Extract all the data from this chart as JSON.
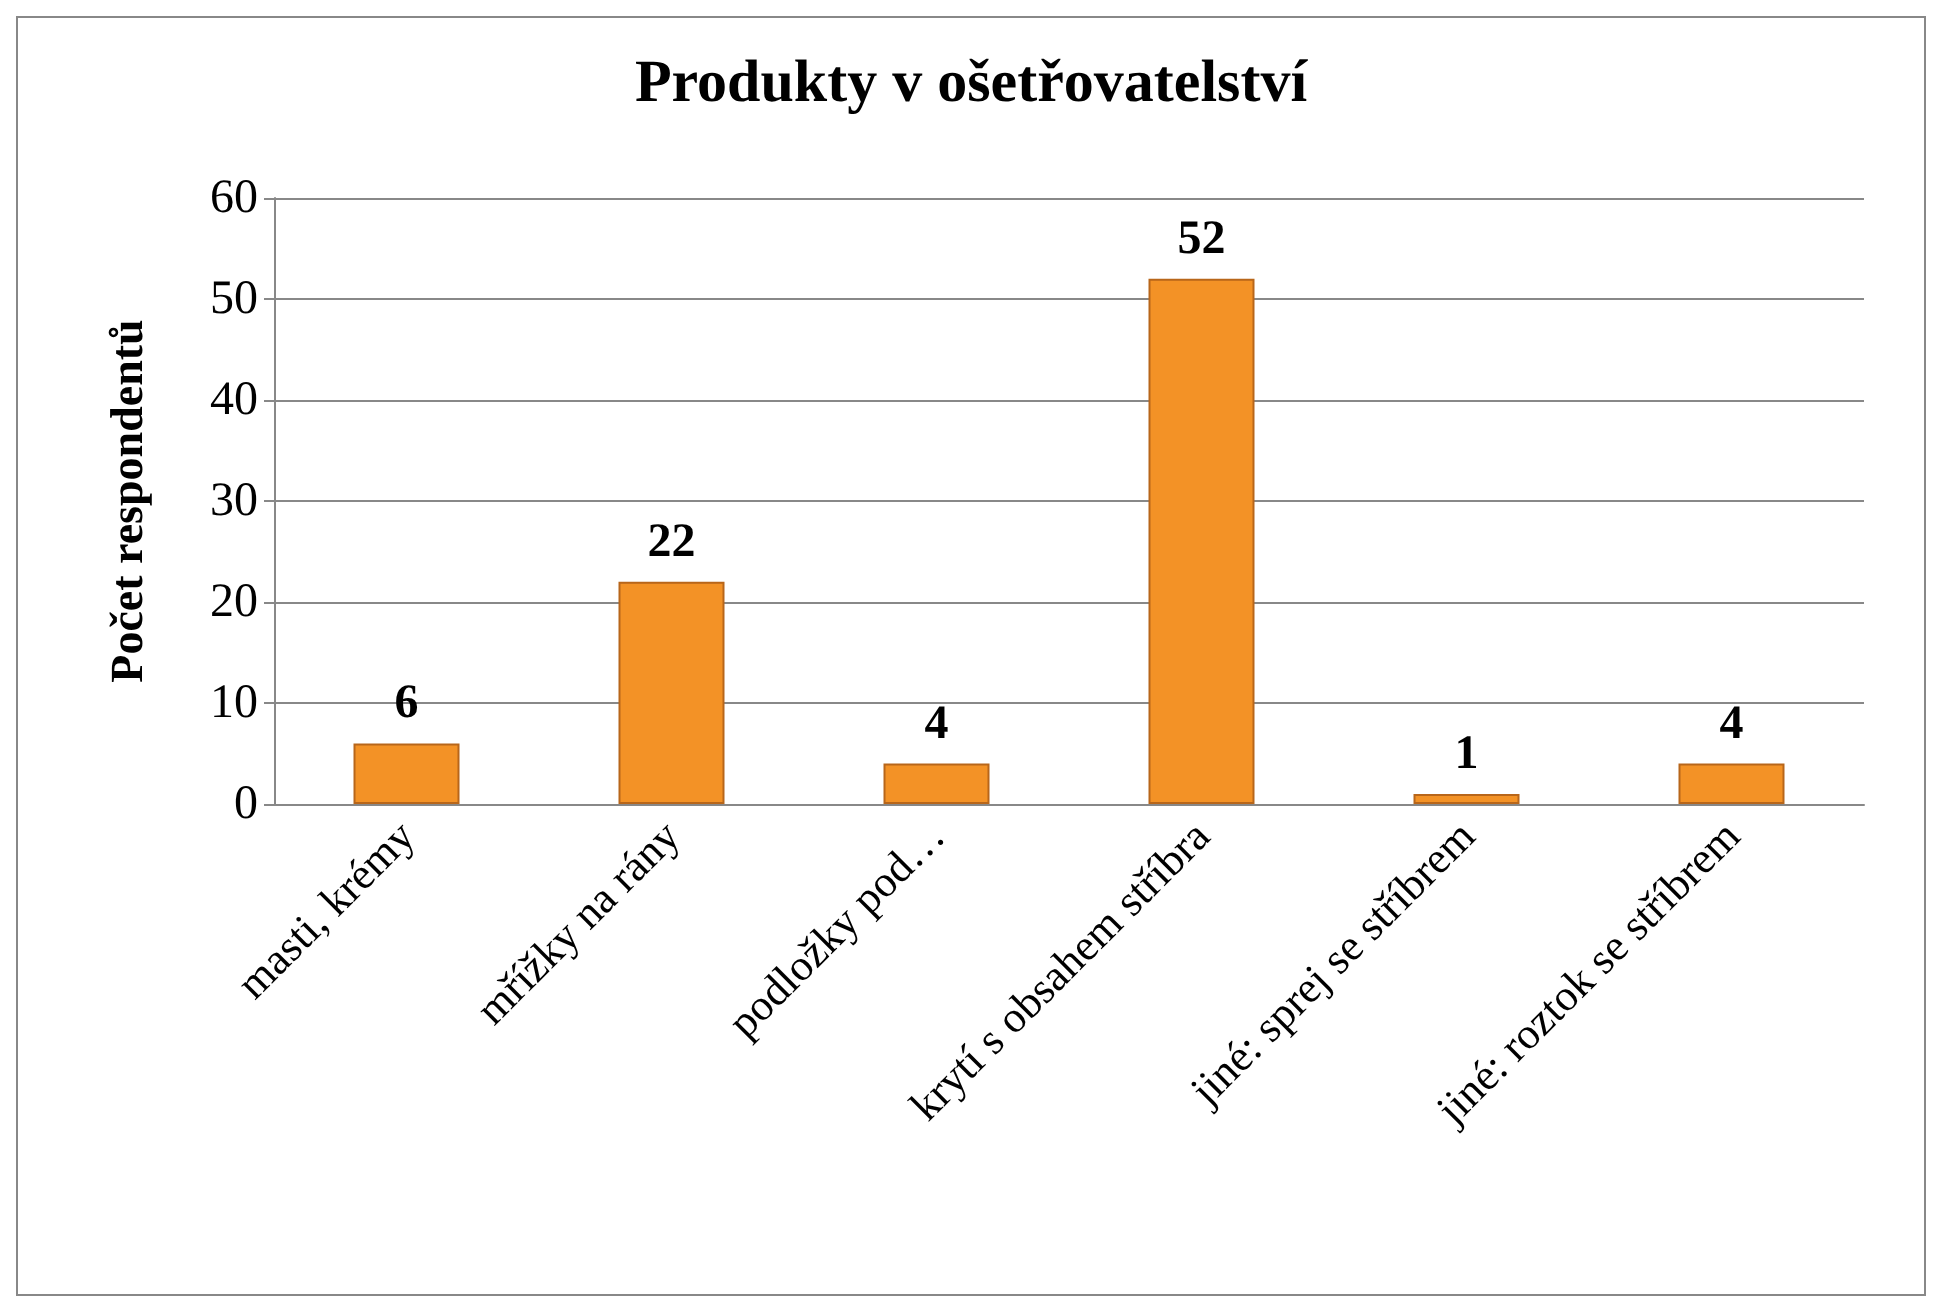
{
  "chart_data": {
    "type": "bar",
    "title": "Produkty v ošetřovatelství",
    "ylabel": "Počet respondentů",
    "categories": [
      "masti, krémy",
      "mřížky na rány",
      "podložky pod…",
      "krytí s obsahem stříbra",
      "jiné: sprej se stříbrem",
      "jiné: roztok se stříbrem"
    ],
    "values": [
      6,
      22,
      4,
      52,
      1,
      4
    ],
    "color": "#f39226",
    "ylim": [
      0,
      60
    ],
    "yticks": [
      0,
      10,
      20,
      30,
      40,
      50,
      60
    ],
    "grid": "y",
    "data_labels": true
  }
}
